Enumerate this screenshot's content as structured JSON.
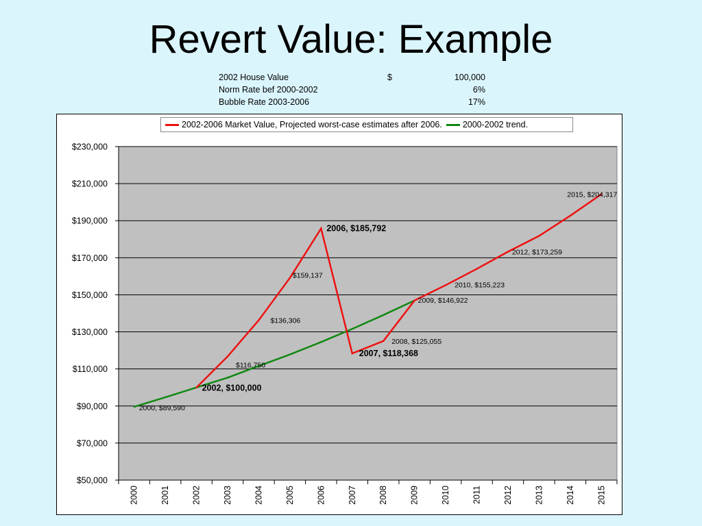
{
  "slide": {
    "title": "Revert Value: Example"
  },
  "info_table": [
    {
      "label": "2002 House Value",
      "currency": "$",
      "value": "100,000"
    },
    {
      "label": "Norm Rate bef 2000-2002",
      "currency": "",
      "value": "6%"
    },
    {
      "label": "Bubble Rate 2003-2006",
      "currency": "",
      "value": "17%"
    }
  ],
  "chart_data": {
    "type": "line",
    "title": "",
    "xlabel": "",
    "ylabel": "",
    "categories": [
      "2000",
      "2001",
      "2002",
      "2003",
      "2004",
      "2005",
      "2006",
      "2007",
      "2008",
      "2009",
      "2010",
      "2011",
      "2012",
      "2013",
      "2014",
      "2015"
    ],
    "ylim": [
      50000,
      230000
    ],
    "yticks": [
      50000,
      70000,
      90000,
      110000,
      130000,
      150000,
      170000,
      190000,
      210000,
      230000
    ],
    "ytick_labels": [
      "$50,000",
      "$70,000",
      "$90,000",
      "$110,000",
      "$130,000",
      "$150,000",
      "$170,000",
      "$190,000",
      "$210,000",
      "$230,000"
    ],
    "grid": true,
    "legend_position": "top",
    "plot_background": "#c0c0c0",
    "series": [
      {
        "name": "2002-2006 Market Value, Projected worst-case estimates after 2006.",
        "color": "#ee1111",
        "x": [
          "2002",
          "2003",
          "2004",
          "2005",
          "2006",
          "2007",
          "2008",
          "2009",
          "2010",
          "2011",
          "2012",
          "2013",
          "2014",
          "2015"
        ],
        "values": [
          100000,
          116750,
          136306,
          159137,
          185792,
          118368,
          125055,
          146922,
          155223,
          164000,
          173259,
          181800,
          192700,
          204317
        ]
      },
      {
        "name": "2000-2002 trend.",
        "color": "#118811",
        "x": [
          "2000",
          "2001",
          "2002",
          "2003",
          "2004",
          "2005",
          "2006",
          "2007",
          "2008",
          "2009"
        ],
        "values": [
          89590,
          94700,
          100000,
          105300,
          111600,
          117800,
          124500,
          131600,
          139100,
          146922
        ]
      }
    ],
    "annotations": [
      {
        "x": "2000",
        "y": 89590,
        "text": "2000,  $89,590",
        "bold": false
      },
      {
        "x": "2002",
        "y": 100000,
        "text": "2002,  $100,000",
        "bold": true
      },
      {
        "x": "2003",
        "y": 116750,
        "text": "$116,750",
        "bold": false
      },
      {
        "x": "2004",
        "y": 136306,
        "text": "$136,306",
        "bold": false
      },
      {
        "x": "2005",
        "y": 159137,
        "text": "$159,137",
        "bold": false
      },
      {
        "x": "2006",
        "y": 185792,
        "text": "2006,  $185,792",
        "bold": true
      },
      {
        "x": "2007",
        "y": 118368,
        "text": "2007,  $118,368",
        "bold": true
      },
      {
        "x": "2008",
        "y": 125055,
        "text": "2008,  $125,055",
        "bold": false
      },
      {
        "x": "2009",
        "y": 146922,
        "text": "2009,  $146,922",
        "bold": false
      },
      {
        "x": "2010",
        "y": 155223,
        "text": "2010,  $155,223",
        "bold": false
      },
      {
        "x": "2012",
        "y": 173259,
        "text": "2012,  $173,259",
        "bold": false
      },
      {
        "x": "2015",
        "y": 204317,
        "text": "2015,  $204,317",
        "bold": false
      }
    ]
  }
}
